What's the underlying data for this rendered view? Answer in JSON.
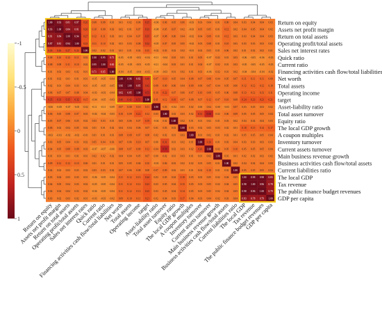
{
  "chart_data": {
    "type": "heatmap",
    "title": "",
    "variables": [
      "Return on equity",
      "Assets net profit margin",
      "Return on total assets",
      "Operating profit/total assets",
      "Sales net interest rates",
      "Quick ratio",
      "Current ratio",
      "Financing activities cash flow/total liabilities",
      "Net worth",
      "Total assets",
      "Operating income",
      "target",
      "Asset-liability ratio",
      "Total asset turnover",
      "Equity ratio",
      "The local GDP growth",
      "A coupon multiples",
      "Inventory turnover",
      "Current assets turnover",
      "Main business revenue growth",
      "Business activities cash flow/total assets",
      "Current liabilities ratio",
      "The local GDP",
      "Tax revenue",
      "The public finance budget revenues",
      "GDP per capita"
    ],
    "color_scale": {
      "min": -1,
      "max": 1,
      "ticks": [
        -1,
        -0.5,
        0,
        0.5,
        1
      ],
      "tick_labels": [
        "-1",
        "-0.5",
        "0",
        "0.5",
        "1"
      ],
      "colors": [
        "#fffbd0",
        "#ffe27a",
        "#fba63a",
        "#ee5a1f",
        "#c2241f",
        "#6b0a1a"
      ]
    },
    "clusters": [
      {
        "start": 0,
        "end": 4
      },
      {
        "start": 5,
        "end": 7
      },
      {
        "start": 8,
        "end": 11
      },
      {
        "start": 22,
        "end": 25
      }
    ],
    "cluster_color": "#f5c518",
    "matrix": [
      [
        1.0,
        0.93,
        0.81,
        0.87,
        0.26,
        0.08,
        0.08,
        0.01,
        0.01,
        0.02,
        0.06,
        0.35,
        -0.06,
        0.06,
        0.05,
        0.06,
        -0.03,
        0.03,
        0.04,
        0.01,
        0.09,
        0.04,
        0.03,
        0.04,
        0.04,
        0.03
      ],
      [
        0.93,
        1.0,
        0.84,
        0.81,
        0.26,
        0.1,
        0.08,
        0.03,
        0.02,
        0.01,
        0.07,
        0.33,
        -0.08,
        0.05,
        0.07,
        0.02,
        -0.03,
        0.05,
        0.05,
        0.01,
        0.12,
        0.02,
        0.04,
        0.05,
        0.04,
        0.02
      ],
      [
        0.81,
        0.84,
        1.0,
        0.94,
        0.27,
        0.12,
        0.11,
        0.03,
        0.01,
        0.04,
        0.07,
        0.35,
        -0.07,
        0.08,
        0.06,
        0.04,
        -0.02,
        0.04,
        0.09,
        0.01,
        0.12,
        0.03,
        0.03,
        0.04,
        0.04,
        0.03
      ],
      [
        0.87,
        0.81,
        0.94,
        1.0,
        0.24,
        0.11,
        0.1,
        0.02,
        0.01,
        0.03,
        0.08,
        0.32,
        -0.05,
        0.07,
        0.05,
        0.05,
        -0.02,
        0.03,
        0.08,
        0.01,
        0.1,
        0.03,
        0.03,
        0.03,
        0.03,
        0.02
      ],
      [
        0.26,
        0.26,
        0.27,
        0.24,
        1.0,
        0.02,
        0.02,
        0.01,
        0.01,
        0.01,
        0.04,
        0.15,
        -0.02,
        0.03,
        0.02,
        0.02,
        -0.01,
        0.02,
        0.03,
        0.01,
        0.06,
        0.02,
        0.01,
        0.02,
        0.02,
        0.01
      ],
      [
        0.08,
        0.1,
        0.12,
        0.11,
        0.02,
        1.0,
        0.95,
        0.71,
        -0.05,
        -0.05,
        -0.03,
        -0.04,
        -0.11,
        -0.04,
        0.03,
        0.01,
        0.01,
        0.05,
        -0.07,
        0.02,
        0.01,
        0.03,
        -0.06,
        -0.05,
        -0.06,
        -0.03
      ],
      [
        0.08,
        0.08,
        0.11,
        0.1,
        0.02,
        0.95,
        1.0,
        0.65,
        -0.05,
        -0.05,
        -0.03,
        -0.05,
        -0.11,
        -0.04,
        0.03,
        0.01,
        0.01,
        0.04,
        -0.07,
        0.02,
        0.01,
        0.03,
        -0.05,
        -0.05,
        -0.05,
        -0.03
      ],
      [
        0.01,
        0.03,
        0.03,
        0.02,
        0.01,
        0.71,
        0.65,
        1.0,
        -0.04,
        -0.05,
        -0.04,
        -0.03,
        -0.09,
        -0.03,
        0.01,
        0.02,
        0.01,
        0.03,
        -0.06,
        0.02,
        0.01,
        0.02,
        -0.04,
        -0.04,
        -0.04,
        -0.02
      ],
      [
        0.01,
        0.02,
        0.01,
        0.01,
        0.01,
        -0.05,
        -0.05,
        -0.04,
        1.0,
        0.96,
        0.82,
        0.4,
        0.07,
        0.1,
        0.05,
        0.04,
        0.08,
        0.07,
        0.08,
        0.04,
        0.05,
        0.07,
        0.11,
        0.11,
        0.11,
        0.09
      ],
      [
        0.02,
        0.01,
        0.04,
        0.03,
        0.01,
        -0.05,
        -0.05,
        -0.05,
        0.96,
        1.0,
        0.85,
        0.42,
        0.08,
        0.09,
        0.06,
        0.04,
        0.09,
        0.06,
        0.07,
        0.04,
        0.05,
        0.06,
        0.12,
        0.12,
        0.12,
        0.1
      ],
      [
        0.06,
        0.07,
        0.07,
        0.08,
        0.04,
        -0.03,
        -0.03,
        -0.04,
        0.82,
        0.85,
        1.0,
        0.53,
        0.1,
        0.22,
        0.07,
        0.06,
        0.07,
        0.1,
        0.09,
        0.05,
        0.06,
        0.08,
        0.13,
        0.12,
        0.13,
        0.11
      ],
      [
        0.35,
        0.33,
        0.35,
        0.32,
        0.15,
        -0.04,
        -0.05,
        -0.03,
        0.4,
        0.42,
        0.53,
        1.0,
        0.11,
        0.12,
        0.19,
        0.07,
        0.08,
        0.07,
        0.12,
        0.07,
        0.1,
        0.08,
        0.24,
        0.23,
        0.23,
        0.21
      ],
      [
        -0.06,
        -0.08,
        -0.07,
        -0.05,
        -0.02,
        -0.11,
        -0.11,
        -0.09,
        0.07,
        0.08,
        0.1,
        0.11,
        1.0,
        0.03,
        -0.04,
        0.01,
        0.02,
        0.0,
        0.04,
        0.0,
        -0.03,
        0.07,
        0.03,
        0.03,
        0.03,
        0.02
      ],
      [
        0.06,
        0.05,
        0.08,
        0.07,
        0.03,
        -0.04,
        -0.04,
        -0.03,
        0.1,
        0.09,
        0.22,
        0.12,
        0.03,
        1.0,
        0.02,
        0.03,
        0.02,
        0.31,
        0.58,
        0.02,
        0.06,
        0.09,
        0.05,
        0.05,
        0.05,
        0.04
      ],
      [
        0.05,
        0.07,
        0.06,
        0.05,
        0.02,
        0.03,
        0.03,
        0.01,
        0.05,
        0.06,
        0.07,
        0.19,
        -0.04,
        0.02,
        1.0,
        0.02,
        0.01,
        0.01,
        0.02,
        0.01,
        0.03,
        0.02,
        0.04,
        0.04,
        0.04,
        0.03
      ],
      [
        0.06,
        0.02,
        0.04,
        0.05,
        0.02,
        0.01,
        0.01,
        0.02,
        0.04,
        0.04,
        0.06,
        0.07,
        0.01,
        0.03,
        0.02,
        1.0,
        0.03,
        0.02,
        0.03,
        0.03,
        0.02,
        0.01,
        0.18,
        0.15,
        0.14,
        0.17
      ],
      [
        -0.03,
        -0.03,
        -0.02,
        -0.02,
        -0.01,
        0.01,
        0.01,
        0.01,
        0.08,
        0.09,
        0.07,
        0.08,
        0.02,
        0.02,
        0.01,
        0.03,
        1.0,
        0.01,
        0.02,
        0.01,
        0.02,
        0.01,
        0.05,
        0.05,
        0.05,
        0.04
      ],
      [
        0.03,
        0.05,
        0.04,
        0.03,
        0.02,
        0.05,
        0.04,
        0.03,
        0.07,
        0.06,
        0.1,
        0.07,
        0.0,
        0.31,
        0.01,
        0.02,
        0.01,
        1.0,
        0.26,
        0.01,
        0.03,
        0.04,
        0.03,
        0.03,
        0.03,
        0.03
      ],
      [
        0.04,
        0.05,
        0.09,
        0.08,
        0.03,
        -0.07,
        -0.07,
        -0.06,
        0.08,
        0.07,
        0.09,
        0.12,
        0.04,
        0.58,
        0.02,
        0.03,
        0.02,
        0.26,
        1.0,
        0.02,
        0.05,
        0.1,
        0.05,
        0.05,
        0.05,
        0.04
      ],
      [
        0.01,
        0.01,
        0.01,
        0.01,
        0.01,
        0.02,
        0.02,
        0.02,
        0.04,
        0.04,
        0.05,
        0.07,
        0.0,
        0.02,
        0.01,
        0.03,
        0.01,
        0.01,
        0.02,
        1.0,
        0.01,
        0.01,
        0.02,
        0.02,
        0.02,
        0.02
      ],
      [
        0.09,
        0.12,
        0.12,
        0.1,
        0.06,
        0.01,
        0.01,
        0.01,
        0.05,
        0.05,
        0.06,
        0.1,
        -0.03,
        0.06,
        0.03,
        0.02,
        0.02,
        0.03,
        0.05,
        0.01,
        1.0,
        0.02,
        0.04,
        0.04,
        0.04,
        0.03
      ],
      [
        0.04,
        0.02,
        0.03,
        0.03,
        0.02,
        0.03,
        0.03,
        0.02,
        0.07,
        0.06,
        0.08,
        0.08,
        0.07,
        0.09,
        0.02,
        0.01,
        0.01,
        0.04,
        0.1,
        0.01,
        0.02,
        1.0,
        0.05,
        0.05,
        0.05,
        0.04
      ],
      [
        0.03,
        0.04,
        0.03,
        0.03,
        0.01,
        -0.06,
        -0.05,
        -0.04,
        0.11,
        0.12,
        0.13,
        0.24,
        0.03,
        0.05,
        0.04,
        0.18,
        0.05,
        0.03,
        0.05,
        0.02,
        0.04,
        0.05,
        1.0,
        0.98,
        0.98,
        0.83
      ],
      [
        0.04,
        0.05,
        0.04,
        0.03,
        0.02,
        -0.05,
        -0.05,
        -0.04,
        0.11,
        0.12,
        0.12,
        0.23,
        0.03,
        0.05,
        0.04,
        0.15,
        0.05,
        0.03,
        0.05,
        0.02,
        0.04,
        0.05,
        0.98,
        1.0,
        0.96,
        0.78
      ],
      [
        0.04,
        0.04,
        0.04,
        0.03,
        0.02,
        -0.06,
        -0.05,
        -0.04,
        0.11,
        0.12,
        0.13,
        0.23,
        0.03,
        0.05,
        0.04,
        0.14,
        0.05,
        0.03,
        0.05,
        0.02,
        0.04,
        0.05,
        0.98,
        0.96,
        1.0,
        0.79
      ],
      [
        0.03,
        0.02,
        0.03,
        0.02,
        0.01,
        -0.03,
        -0.03,
        -0.02,
        0.09,
        0.1,
        0.11,
        0.21,
        0.02,
        0.04,
        0.03,
        0.17,
        0.04,
        0.03,
        0.04,
        0.02,
        0.03,
        0.04,
        0.83,
        0.78,
        0.79,
        1.0
      ]
    ]
  }
}
